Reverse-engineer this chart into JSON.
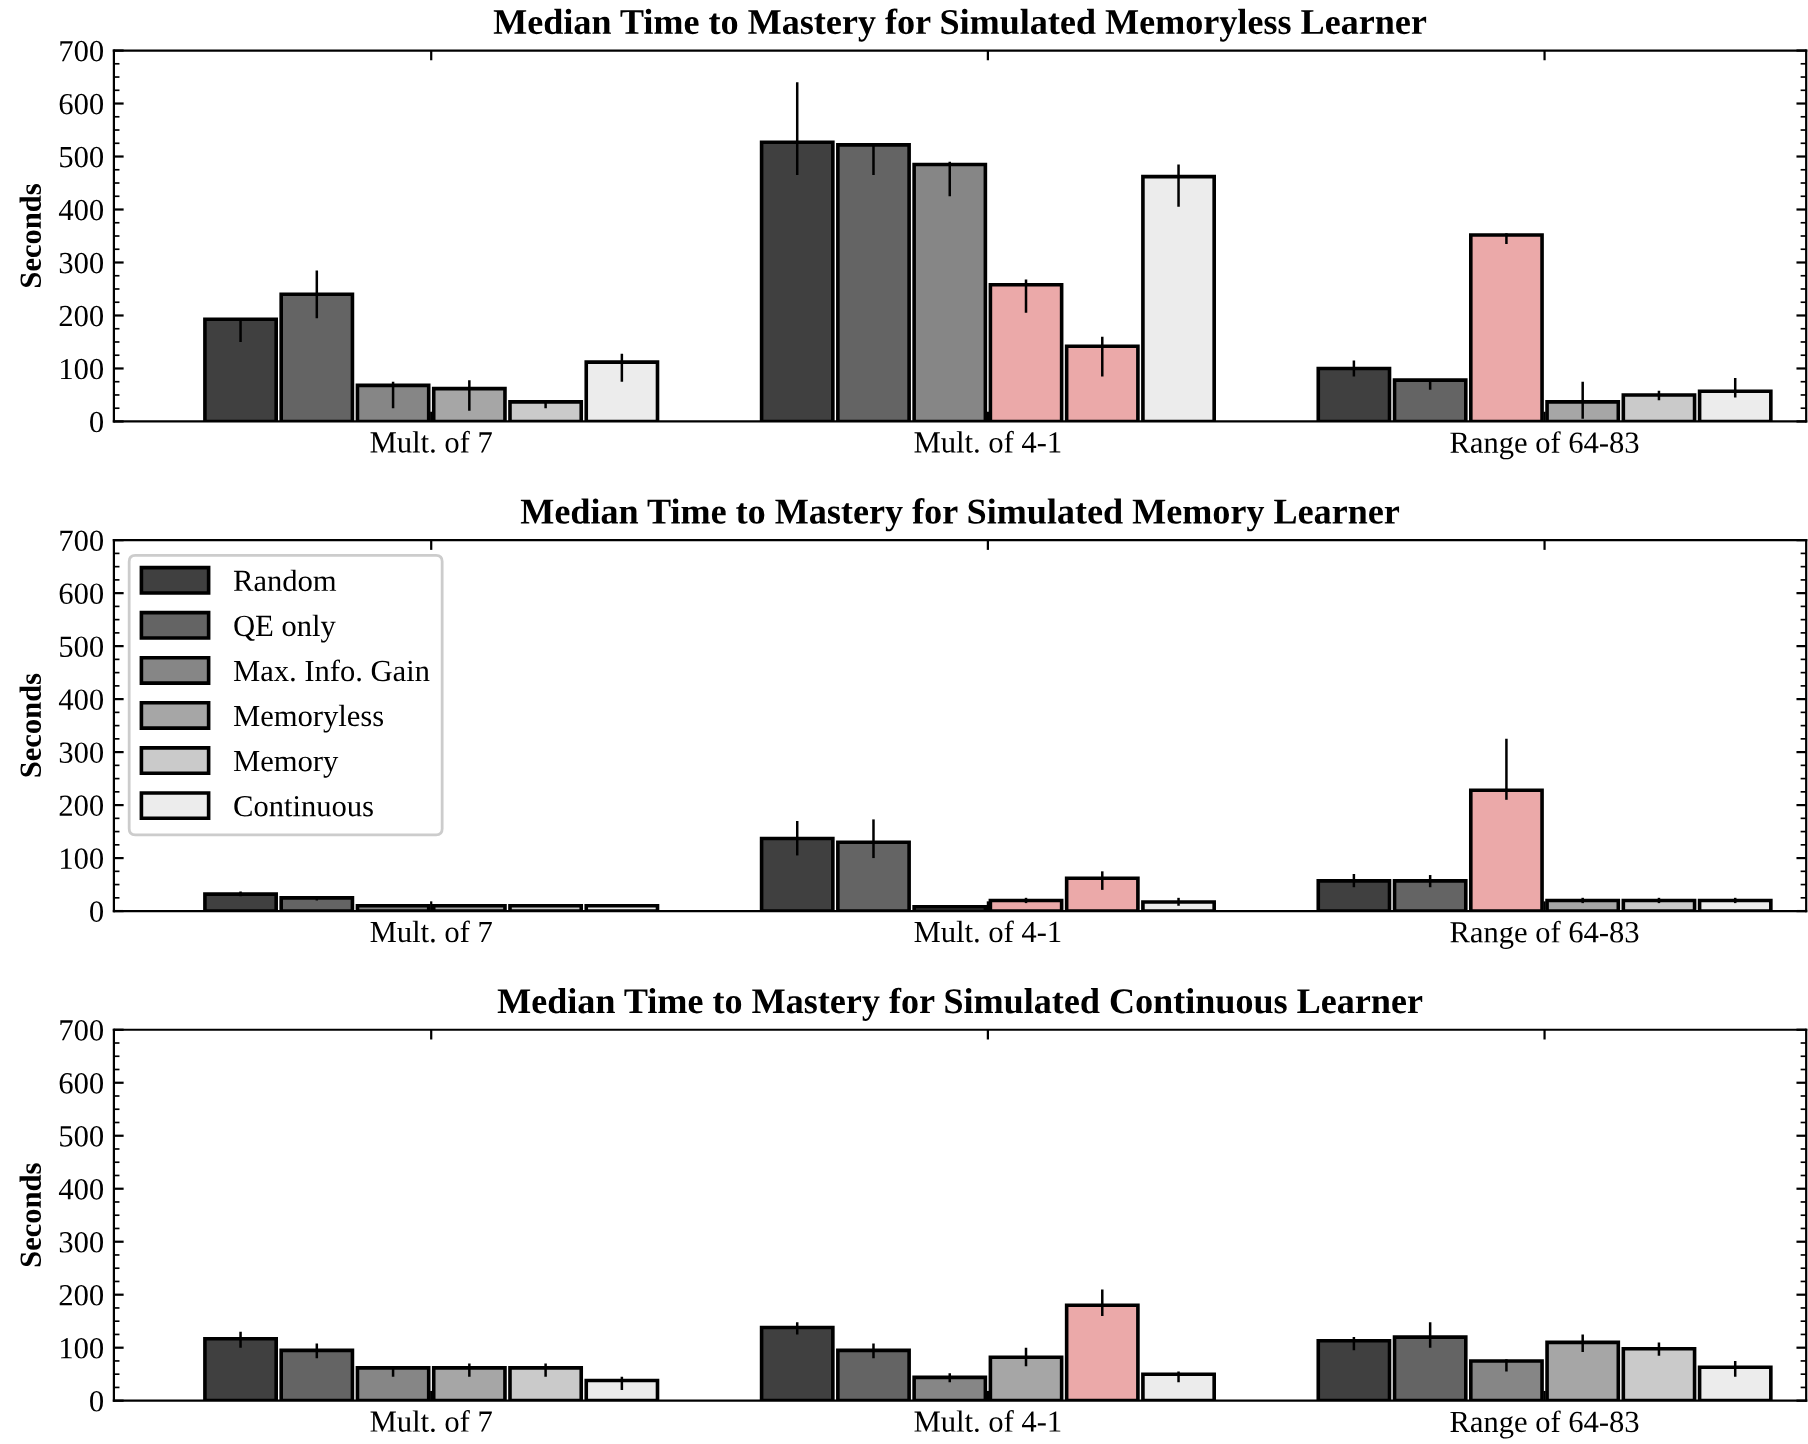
{
  "chart_data": [
    {
      "type": "bar",
      "title": "Median Time to Mastery for Simulated Memoryless Learner",
      "ylabel": "Seconds",
      "categories": [
        "Mult. of 7",
        "Mult. of 4-1",
        "Range of 64-83"
      ],
      "ylim": [
        0,
        700
      ],
      "yticks": [
        0,
        100,
        200,
        300,
        400,
        500,
        600,
        700
      ],
      "series": [
        {
          "colors": [
            "#404040",
            "#404040",
            "#404040"
          ],
          "values": [
            193,
            527,
            100
          ],
          "errors": [
            [
              150,
              195
            ],
            [
              465,
              640
            ],
            [
              85,
              115
            ]
          ]
        },
        {
          "colors": [
            "#646464",
            "#646464",
            "#646464"
          ],
          "values": [
            240,
            522,
            78
          ],
          "errors": [
            [
              195,
              285
            ],
            [
              465,
              525
            ],
            [
              60,
              80
            ]
          ]
        },
        {
          "colors": [
            "#868686",
            "#868686",
            "#eba9a9"
          ],
          "values": [
            68,
            485,
            352
          ],
          "errors": [
            [
              25,
              75
            ],
            [
              425,
              490
            ],
            [
              335,
              355
            ]
          ]
        },
        {
          "colors": [
            "#a6a6a6",
            "#eba9a9",
            "#a6a6a6"
          ],
          "values": [
            62,
            258,
            37
          ],
          "errors": [
            [
              20,
              78
            ],
            [
              205,
              268
            ],
            [
              5,
              75
            ]
          ]
        },
        {
          "colors": [
            "#cacaca",
            "#eba9a9",
            "#cacaca"
          ],
          "values": [
            37,
            142,
            50
          ],
          "errors": [
            [
              25,
              38
            ],
            [
              85,
              160
            ],
            [
              40,
              58
            ]
          ]
        },
        {
          "colors": [
            "#ececec",
            "#ececec",
            "#ececec"
          ],
          "values": [
            112,
            462,
            57
          ],
          "errors": [
            [
              75,
              128
            ],
            [
              405,
              485
            ],
            [
              45,
              82
            ]
          ]
        }
      ]
    },
    {
      "type": "bar",
      "title": "Median Time to Mastery for Simulated Memory Learner",
      "ylabel": "Seconds",
      "categories": [
        "Mult. of 7",
        "Mult. of 4-1",
        "Range of 64-83"
      ],
      "ylim": [
        0,
        700
      ],
      "yticks": [
        0,
        100,
        200,
        300,
        400,
        500,
        600,
        700
      ],
      "legend": "top left",
      "series": [
        {
          "name": "Random",
          "color": "#404040",
          "colors": [
            "#404040",
            "#404040",
            "#404040"
          ],
          "values": [
            32,
            137,
            57
          ],
          "errors": [
            [
              28,
              37
            ],
            [
              105,
              170
            ],
            [
              45,
              70
            ]
          ]
        },
        {
          "name": "QE only",
          "color": "#646464",
          "colors": [
            "#646464",
            "#646464",
            "#646464"
          ],
          "values": [
            25,
            130,
            57
          ],
          "errors": [
            [
              20,
              27
            ],
            [
              100,
              173
            ],
            [
              45,
              68
            ]
          ]
        },
        {
          "name": "Max. Info. Gain",
          "color": "#868686",
          "colors": [
            "#868686",
            "#868686",
            "#eba9a9"
          ],
          "values": [
            10,
            8,
            228
          ],
          "errors": [
            null,
            null,
            [
              210,
              325
            ]
          ]
        },
        {
          "name": "Memoryless",
          "color": "#a6a6a6",
          "colors": [
            "#a6a6a6",
            "#eba9a9",
            "#a6a6a6"
          ],
          "values": [
            10,
            20,
            20
          ],
          "errors": [
            null,
            [
              15,
              25
            ],
            [
              15,
              25
            ]
          ]
        },
        {
          "name": "Memory",
          "color": "#cacaca",
          "colors": [
            "#cacaca",
            "#eba9a9",
            "#cacaca"
          ],
          "values": [
            10,
            62,
            20
          ],
          "errors": [
            null,
            [
              40,
              75
            ],
            [
              15,
              25
            ]
          ]
        },
        {
          "name": "Continuous",
          "color": "#ececec",
          "colors": [
            "#ececec",
            "#ececec",
            "#ececec"
          ],
          "values": [
            10,
            17,
            20
          ],
          "errors": [
            null,
            [
              10,
              25
            ],
            [
              15,
              25
            ]
          ]
        }
      ]
    },
    {
      "type": "bar",
      "title": "Median Time to Mastery for Simulated Continuous Learner",
      "ylabel": "Seconds",
      "categories": [
        "Mult. of 7",
        "Mult. of 4-1",
        "Range of 64-83"
      ],
      "ylim": [
        0,
        700
      ],
      "yticks": [
        0,
        100,
        200,
        300,
        400,
        500,
        600,
        700
      ],
      "series": [
        {
          "colors": [
            "#404040",
            "#404040",
            "#404040"
          ],
          "values": [
            117,
            138,
            113
          ],
          "errors": [
            [
              100,
              130
            ],
            [
              125,
              148
            ],
            [
              95,
              120
            ]
          ]
        },
        {
          "colors": [
            "#646464",
            "#646464",
            "#646464"
          ],
          "values": [
            95,
            95,
            120
          ],
          "errors": [
            [
              80,
              108
            ],
            [
              80,
              108
            ],
            [
              100,
              148
            ]
          ]
        },
        {
          "colors": [
            "#868686",
            "#868686",
            "#868686"
          ],
          "values": [
            62,
            44,
            75
          ],
          "errors": [
            [
              45,
              65
            ],
            [
              35,
              52
            ],
            [
              55,
              78
            ]
          ]
        },
        {
          "colors": [
            "#a6a6a6",
            "#a6a6a6",
            "#a6a6a6"
          ],
          "values": [
            62,
            82,
            110
          ],
          "errors": [
            [
              45,
              70
            ],
            [
              65,
              100
            ],
            [
              92,
              125
            ]
          ]
        },
        {
          "colors": [
            "#cacaca",
            "#eba9a9",
            "#cacaca"
          ],
          "values": [
            62,
            180,
            98
          ],
          "errors": [
            [
              45,
              70
            ],
            [
              160,
              210
            ],
            [
              85,
              110
            ]
          ]
        },
        {
          "colors": [
            "#ececec",
            "#ececec",
            "#ececec"
          ],
          "values": [
            38,
            50,
            63
          ],
          "errors": [
            [
              20,
              45
            ],
            [
              35,
              55
            ],
            [
              45,
              75
            ]
          ]
        }
      ]
    }
  ]
}
